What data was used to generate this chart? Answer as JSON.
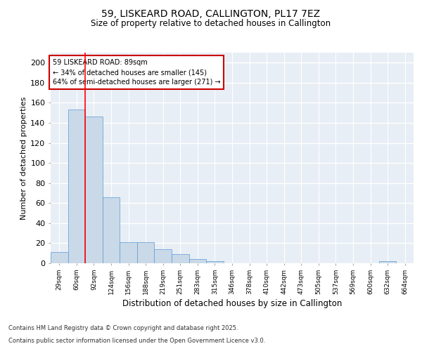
{
  "title1": "59, LISKEARD ROAD, CALLINGTON, PL17 7EZ",
  "title2": "Size of property relative to detached houses in Callington",
  "xlabel": "Distribution of detached houses by size in Callington",
  "ylabel": "Number of detached properties",
  "bin_labels": [
    "29sqm",
    "60sqm",
    "92sqm",
    "124sqm",
    "156sqm",
    "188sqm",
    "219sqm",
    "251sqm",
    "283sqm",
    "315sqm",
    "346sqm",
    "378sqm",
    "410sqm",
    "442sqm",
    "473sqm",
    "505sqm",
    "537sqm",
    "569sqm",
    "600sqm",
    "632sqm",
    "664sqm"
  ],
  "bin_values": [
    11,
    153,
    146,
    66,
    21,
    21,
    14,
    9,
    4,
    2,
    0,
    0,
    0,
    0,
    0,
    0,
    0,
    0,
    0,
    2,
    0
  ],
  "bar_color": "#c9d9e8",
  "bar_edge_color": "#5b9bd5",
  "red_line_bin_index": 2,
  "annotation_line1": "59 LISKEARD ROAD: 89sqm",
  "annotation_line2": "← 34% of detached houses are smaller (145)",
  "annotation_line3": "64% of semi-detached houses are larger (271) →",
  "annotation_box_color": "#ffffff",
  "annotation_box_edge": "#cc0000",
  "ylim": [
    0,
    210
  ],
  "yticks": [
    0,
    20,
    40,
    60,
    80,
    100,
    120,
    140,
    160,
    180,
    200
  ],
  "background_color": "#e8eef5",
  "grid_color": "#ffffff",
  "fig_bg_color": "#ffffff",
  "footer_line1": "Contains HM Land Registry data © Crown copyright and database right 2025.",
  "footer_line2": "Contains public sector information licensed under the Open Government Licence v3.0."
}
